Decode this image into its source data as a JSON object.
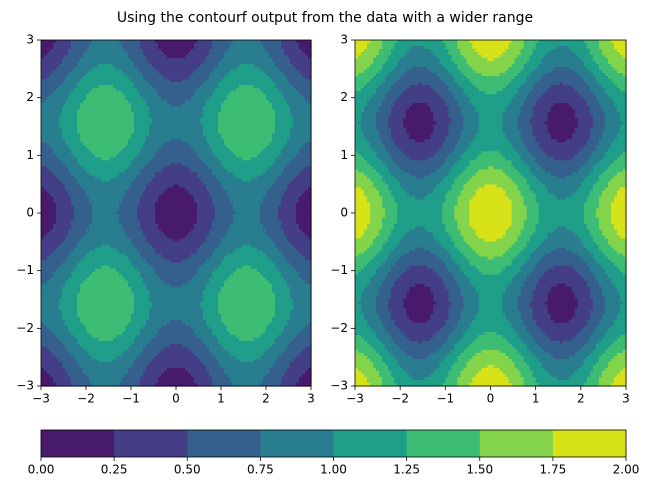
{
  "chart_data": {
    "type": "contourf",
    "title": "Using the contourf output from the data with a wider range",
    "panels": [
      {
        "xlim": [
          -3,
          3
        ],
        "ylim": [
          -3,
          3
        ],
        "xticks": [
          {
            "value": -3,
            "label": "−3"
          },
          {
            "value": -2,
            "label": "−2"
          },
          {
            "value": -1,
            "label": "−1"
          },
          0,
          1,
          2,
          3
        ],
        "yticks": [
          {
            "value": -3,
            "label": "−3"
          },
          {
            "value": -2,
            "label": "−2"
          },
          {
            "value": -1,
            "label": "−1"
          },
          0,
          1,
          2,
          3
        ]
      },
      {
        "xlim": [
          -3,
          3
        ],
        "ylim": [
          -3,
          3
        ],
        "xticks": [
          {
            "value": -3,
            "label": "−3"
          },
          {
            "value": -2,
            "label": "−2"
          },
          {
            "value": -1,
            "label": "−1"
          },
          0,
          1,
          2,
          3
        ],
        "yticks": [
          {
            "value": -3,
            "label": "−3"
          },
          {
            "value": -2,
            "label": "−2"
          },
          {
            "value": -1,
            "label": "−1"
          },
          0,
          1,
          2,
          3
        ]
      }
    ],
    "colorbar": {
      "levels": [
        0,
        0.25,
        0.5,
        0.75,
        1,
        1.25,
        1.5,
        1.75,
        2
      ],
      "colors": [
        "#481a6c",
        "#433e85",
        "#35608d",
        "#287d8e",
        "#1f9e89",
        "#3dbc74",
        "#84d44b",
        "#d8e219"
      ],
      "ticks": [
        {
          "value": 0,
          "label": "0.00"
        },
        {
          "value": 0.25,
          "label": "0.25"
        },
        {
          "value": 0.5,
          "label": "0.50"
        },
        {
          "value": 0.75,
          "label": "0.75"
        },
        {
          "value": 1,
          "label": "1.00"
        },
        {
          "value": 1.25,
          "label": "1.25"
        },
        {
          "value": 1.5,
          "label": "1.50"
        },
        {
          "value": 1.75,
          "label": "1.75"
        },
        {
          "value": 2,
          "label": "2.00"
        }
      ]
    }
  }
}
